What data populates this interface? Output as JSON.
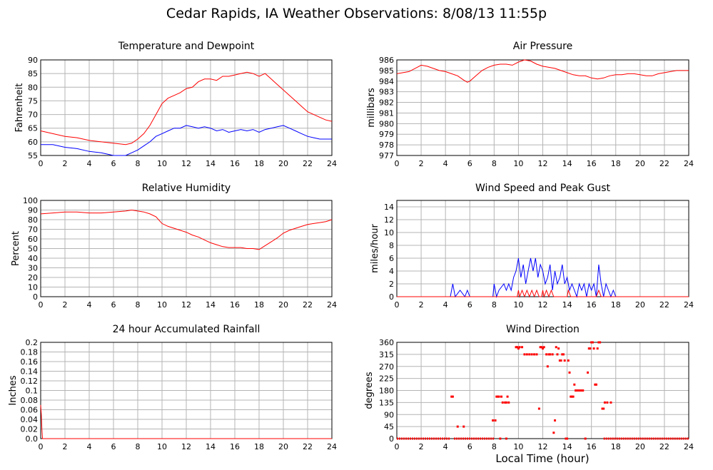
{
  "title": "Cedar Rapids, IA Weather Observations: 8/08/13 11:55p",
  "xaxis_title": "Local Time (hour)",
  "colors": {
    "red": "#ff0000",
    "blue": "#0000ff",
    "grid": "#b4b4b4"
  },
  "chart_data": [
    {
      "id": "temp",
      "type": "line",
      "title": "Temperature and Dewpoint",
      "ylabel": "Fahrenheit",
      "xlim": [
        0,
        24
      ],
      "ylim": [
        55,
        90
      ],
      "yticks": [
        55,
        60,
        65,
        70,
        75,
        80,
        85,
        90
      ],
      "xticks": [
        0,
        2,
        4,
        6,
        8,
        10,
        12,
        14,
        16,
        18,
        20,
        22,
        24
      ],
      "grid": true,
      "series": [
        {
          "color": "#ff0000",
          "x": [
            0,
            1,
            2,
            3,
            4,
            5,
            6,
            7,
            7.5,
            8,
            8.5,
            9,
            9.5,
            10,
            10.5,
            11,
            11.5,
            12,
            12.5,
            13,
            13.5,
            14,
            14.5,
            15,
            15.5,
            16,
            16.5,
            17,
            17.5,
            18,
            18.5,
            19,
            19.5,
            20,
            20.5,
            21,
            21.5,
            22,
            22.5,
            23,
            23.5,
            24
          ],
          "y": [
            64,
            63,
            62,
            61.5,
            60.5,
            60,
            59.5,
            59,
            59.5,
            61,
            63,
            66,
            70,
            74,
            76,
            77,
            78,
            79.5,
            80,
            82,
            83,
            83,
            82.5,
            84,
            84,
            84.5,
            85,
            85.5,
            85,
            84,
            85,
            83,
            81,
            79,
            77,
            75,
            73,
            71,
            70,
            69,
            68,
            67.5
          ]
        },
        {
          "color": "#0000ff",
          "x": [
            0,
            1,
            2,
            3,
            4,
            5,
            6,
            7,
            7.5,
            8,
            8.5,
            9,
            9.5,
            10,
            10.5,
            11,
            11.5,
            12,
            12.5,
            13,
            13.5,
            14,
            14.5,
            15,
            15.5,
            16,
            16.5,
            17,
            17.5,
            18,
            18.5,
            19,
            19.5,
            20,
            20.5,
            21,
            21.5,
            22,
            22.5,
            23,
            23.5,
            24
          ],
          "y": [
            59,
            59,
            58,
            57.5,
            56.5,
            56,
            55,
            55,
            56,
            57,
            58.5,
            60,
            62,
            63,
            64,
            65,
            65,
            66,
            65.5,
            65,
            65.5,
            65,
            64,
            64.5,
            63.5,
            64,
            64.5,
            64,
            64.5,
            63.5,
            64.5,
            65,
            65.5,
            66,
            65,
            64,
            63,
            62,
            61.5,
            61,
            61,
            61
          ]
        }
      ]
    },
    {
      "id": "pres",
      "type": "line",
      "title": "Air Pressure",
      "ylabel": "millibars",
      "xlim": [
        0,
        24
      ],
      "ylim": [
        977,
        986
      ],
      "yticks": [
        977,
        978,
        979,
        980,
        981,
        982,
        983,
        984,
        985,
        986
      ],
      "xticks": [
        0,
        2,
        4,
        6,
        8,
        10,
        12,
        14,
        16,
        18,
        20,
        22,
        24
      ],
      "grid": true,
      "series": [
        {
          "color": "#ff0000",
          "x": [
            0,
            0.5,
            1,
            1.5,
            2,
            2.5,
            3,
            3.5,
            4,
            4.5,
            5,
            5.5,
            5.8,
            6,
            6.5,
            7,
            7.5,
            8,
            8.5,
            9,
            9.5,
            10,
            10.5,
            11,
            11.5,
            12,
            12.5,
            13,
            13.5,
            14,
            14.5,
            15,
            15.5,
            16,
            16.5,
            17,
            17.5,
            18,
            18.5,
            19,
            19.5,
            20,
            20.5,
            21,
            21.5,
            22,
            22.5,
            23,
            23.5,
            24
          ],
          "y": [
            984.7,
            984.8,
            984.9,
            985.2,
            985.5,
            985.4,
            985.2,
            985,
            984.9,
            984.7,
            984.5,
            984.1,
            983.9,
            984,
            984.5,
            985,
            985.3,
            985.5,
            985.6,
            985.6,
            985.5,
            985.8,
            986,
            985.9,
            985.6,
            985.4,
            985.3,
            985.2,
            985,
            984.8,
            984.6,
            984.5,
            984.5,
            984.3,
            984.2,
            984.3,
            984.5,
            984.6,
            984.6,
            984.7,
            984.7,
            984.6,
            984.5,
            984.5,
            984.7,
            984.8,
            984.9,
            985,
            985,
            985
          ]
        }
      ]
    },
    {
      "id": "rh",
      "type": "line",
      "title": "Relative Humidity",
      "ylabel": "Percent",
      "xlim": [
        0,
        24
      ],
      "ylim": [
        0,
        100
      ],
      "yticks": [
        0,
        10,
        20,
        30,
        40,
        50,
        60,
        70,
        80,
        90,
        100
      ],
      "xticks": [
        0,
        2,
        4,
        6,
        8,
        10,
        12,
        14,
        16,
        18,
        20,
        22,
        24
      ],
      "grid": true,
      "series": [
        {
          "color": "#ff0000",
          "x": [
            0,
            1,
            2,
            3,
            4,
            5,
            6,
            7,
            7.5,
            8,
            8.5,
            9,
            9.5,
            10,
            10.5,
            11,
            11.5,
            12,
            12.5,
            13,
            13.5,
            14,
            14.5,
            15,
            15.5,
            16,
            16.5,
            17,
            17.5,
            18,
            18.5,
            19,
            19.5,
            20,
            20.5,
            21,
            21.5,
            22,
            22.5,
            23,
            23.5,
            24
          ],
          "y": [
            86,
            87,
            88,
            88,
            87,
            87,
            88,
            89,
            90,
            89,
            88,
            86,
            83,
            76,
            73,
            71,
            69,
            67,
            64,
            62,
            59,
            56,
            54,
            52,
            51,
            51,
            51,
            50,
            50,
            49,
            53,
            57,
            61,
            66,
            69,
            71,
            73,
            75,
            76,
            77,
            78,
            80
          ]
        }
      ]
    },
    {
      "id": "wind",
      "type": "line",
      "title": "Wind Speed and Peak Gust",
      "ylabel": "miles/hour",
      "xlim": [
        0,
        24
      ],
      "ylim": [
        0,
        15
      ],
      "yticks": [
        0,
        2,
        4,
        6,
        8,
        10,
        12,
        14
      ],
      "xticks": [
        0,
        2,
        4,
        6,
        8,
        10,
        12,
        14,
        16,
        18,
        20,
        22,
        24
      ],
      "grid": true,
      "series": [
        {
          "color": "#0000ff",
          "x": [
            0,
            4.4,
            4.6,
            4.8,
            5.2,
            5.6,
            5.8,
            6,
            7.9,
            8,
            8.2,
            8.4,
            8.8,
            9,
            9.2,
            9.4,
            9.6,
            9.8,
            10,
            10.2,
            10.4,
            10.6,
            10.8,
            11,
            11.2,
            11.4,
            11.6,
            11.8,
            12,
            12.2,
            12.4,
            12.6,
            12.8,
            13,
            13.2,
            13.4,
            13.6,
            13.8,
            14,
            14.2,
            14.4,
            14.6,
            14.8,
            15,
            15.2,
            15.4,
            15.6,
            15.8,
            16,
            16.2,
            16.4,
            16.6,
            16.8,
            17,
            17.2,
            17.4,
            17.6,
            17.8,
            18,
            24
          ],
          "y": [
            0,
            0,
            2,
            0,
            1,
            0,
            1,
            0,
            0,
            2,
            0,
            1,
            2,
            1,
            2,
            1,
            3,
            4,
            6,
            3,
            5,
            2,
            4,
            6,
            4,
            6,
            3,
            5,
            4,
            2,
            3,
            5,
            1,
            4,
            2,
            3,
            5,
            2,
            3,
            1,
            2,
            1,
            0,
            2,
            1,
            2,
            0,
            2,
            1,
            2,
            0,
            5,
            2,
            0,
            2,
            1,
            0,
            1,
            0,
            0
          ]
        },
        {
          "color": "#ff0000",
          "x": [
            0,
            9.9,
            10,
            10.1,
            10.3,
            10.5,
            10.7,
            10.9,
            11.1,
            11.3,
            11.5,
            11.7,
            11.9,
            12,
            12.1,
            12.3,
            12.5,
            12.7,
            12.9,
            13.1,
            14,
            14.1,
            14.3,
            14.5,
            16.4,
            16.6,
            16.8,
            24
          ],
          "y": [
            0,
            0,
            1,
            0,
            1,
            0,
            1,
            0,
            1,
            0,
            1,
            0,
            0,
            1,
            0,
            1,
            0,
            1,
            0,
            0,
            0,
            1,
            0,
            0,
            0,
            1,
            0,
            0
          ]
        }
      ]
    },
    {
      "id": "rain",
      "type": "line",
      "title": "24 hour Accumulated Rainfall",
      "ylabel": "Inches",
      "xlim": [
        0,
        24
      ],
      "ylim": [
        0.0,
        0.2
      ],
      "yticks": [
        "0.0",
        "0.02",
        "0.04",
        "0.06",
        "0.08",
        "0.1",
        "0.12",
        "0.14",
        "0.16",
        "0.18",
        "0.2"
      ],
      "xticks": [
        0,
        2,
        4,
        6,
        8,
        10,
        12,
        14,
        16,
        18,
        20,
        22,
        24
      ],
      "grid": true,
      "series": [
        {
          "color": "#ff0000",
          "x": [
            0,
            0.05,
            0.1,
            0.15,
            24
          ],
          "y": [
            0.07,
            0.05,
            0.02,
            0,
            0
          ]
        }
      ]
    },
    {
      "id": "dir",
      "type": "scatter",
      "title": "Wind Direction",
      "ylabel": "degrees",
      "xlim": [
        0,
        24
      ],
      "ylim": [
        0,
        360
      ],
      "yticks": [
        0,
        45,
        90,
        135,
        180,
        225,
        270,
        315,
        360
      ],
      "xticks": [
        0,
        2,
        4,
        6,
        8,
        10,
        12,
        14,
        16,
        18,
        20,
        22,
        24
      ],
      "grid": true,
      "series": [
        {
          "color": "#ff0000",
          "points": [
            [
              4.5,
              157
            ],
            [
              4.6,
              157
            ],
            [
              5.0,
              45
            ],
            [
              5.5,
              45
            ],
            [
              7.9,
              68
            ],
            [
              8.1,
              68
            ],
            [
              8.2,
              157
            ],
            [
              8.3,
              157
            ],
            [
              8.4,
              157
            ],
            [
              8.6,
              157
            ],
            [
              8.7,
              135
            ],
            [
              8.9,
              135
            ],
            [
              9.0,
              135
            ],
            [
              9.1,
              157
            ],
            [
              9.2,
              135
            ],
            [
              8.5,
              0
            ],
            [
              9.0,
              0
            ],
            [
              9.8,
              342
            ],
            [
              9.9,
              342
            ],
            [
              10.0,
              337
            ],
            [
              10.1,
              342
            ],
            [
              10.3,
              342
            ],
            [
              10.5,
              315
            ],
            [
              10.7,
              315
            ],
            [
              10.9,
              315
            ],
            [
              11.1,
              315
            ],
            [
              11.3,
              315
            ],
            [
              11.5,
              315
            ],
            [
              11.7,
              112
            ],
            [
              11.8,
              342
            ],
            [
              11.9,
              342
            ],
            [
              12.0,
              337
            ],
            [
              12.1,
              342
            ],
            [
              12.3,
              315
            ],
            [
              12.4,
              270
            ],
            [
              12.5,
              315
            ],
            [
              12.6,
              315
            ],
            [
              12.8,
              315
            ],
            [
              12.9,
              22
            ],
            [
              13.0,
              68
            ],
            [
              13.1,
              342
            ],
            [
              13.2,
              315
            ],
            [
              13.3,
              337
            ],
            [
              13.4,
              292
            ],
            [
              13.5,
              292
            ],
            [
              13.6,
              315
            ],
            [
              13.7,
              315
            ],
            [
              13.8,
              292
            ],
            [
              13.9,
              0
            ],
            [
              14.0,
              0
            ],
            [
              14.1,
              292
            ],
            [
              14.2,
              247
            ],
            [
              14.3,
              157
            ],
            [
              14.4,
              157
            ],
            [
              14.5,
              157
            ],
            [
              14.6,
              202
            ],
            [
              14.7,
              180
            ],
            [
              14.8,
              180
            ],
            [
              14.9,
              180
            ],
            [
              15.0,
              180
            ],
            [
              15.1,
              180
            ],
            [
              15.2,
              180
            ],
            [
              15.3,
              180
            ],
            [
              15.5,
              0
            ],
            [
              15.7,
              247
            ],
            [
              15.8,
              337
            ],
            [
              15.9,
              337
            ],
            [
              16.0,
              360
            ],
            [
              16.1,
              360
            ],
            [
              16.2,
              337
            ],
            [
              16.3,
              202
            ],
            [
              16.4,
              202
            ],
            [
              16.5,
              337
            ],
            [
              16.6,
              360
            ],
            [
              16.7,
              360
            ],
            [
              16.9,
              112
            ],
            [
              17.0,
              112
            ],
            [
              17.1,
              135
            ],
            [
              17.3,
              135
            ],
            [
              17.6,
              135
            ]
          ],
          "zero_segments": [
            [
              0,
              4.4
            ],
            [
              4.7,
              8.0
            ],
            [
              17.0,
              24
            ]
          ]
        }
      ]
    }
  ]
}
